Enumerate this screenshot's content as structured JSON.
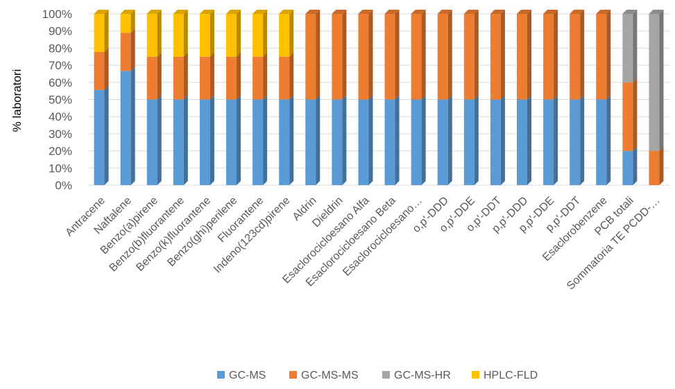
{
  "chart_data": {
    "type": "bar",
    "stacked": true,
    "percent_stacked": true,
    "three_d": true,
    "ylabel": "% laboratori",
    "ylim": [
      0,
      100
    ],
    "y_ticks": [
      "0%",
      "10%",
      "20%",
      "30%",
      "40%",
      "50%",
      "60%",
      "70%",
      "80%",
      "90%",
      "100%"
    ],
    "grid": true,
    "legend_position": "bottom",
    "categories": [
      "Antracene",
      "Naftalene",
      "Benzo(a)pirene",
      "Benzo(b)fluorantene",
      "Benzo(k)fluorantene",
      "Benzo(ghi)perilene",
      "Fluorantene",
      "Indeno(123cd)pirene",
      "Aldrin",
      "Dieldrin",
      "Esaclorocicloesano Alfa",
      "Esaclorocicloesano Beta",
      "Esaclorocicloesano…",
      "o,p'-DDD",
      "o,p'-DDE",
      "o,p'-DDT",
      "p,p'-DDD",
      "p,p'-DDE",
      "p,p'-DDT",
      "Esaclorobenzene",
      "PCB totali",
      "Sommatoria TE PCDD-…"
    ],
    "series": [
      {
        "name": "GC-MS",
        "color": "#5B9BD5",
        "values": [
          55.6,
          66.7,
          50,
          50,
          50,
          50,
          50,
          50,
          50,
          50,
          50,
          50,
          50,
          50,
          50,
          50,
          50,
          50,
          50,
          50,
          20,
          0
        ]
      },
      {
        "name": "GC-MS-MS",
        "color": "#ED7D31",
        "values": [
          22.2,
          22.2,
          25,
          25,
          25,
          25,
          25,
          25,
          50,
          50,
          50,
          50,
          50,
          50,
          50,
          50,
          50,
          50,
          50,
          50,
          40,
          20
        ]
      },
      {
        "name": "GC-MS-HR",
        "color": "#A5A5A5",
        "values": [
          0,
          0,
          0,
          0,
          0,
          0,
          0,
          0,
          0,
          0,
          0,
          0,
          0,
          0,
          0,
          0,
          0,
          0,
          0,
          0,
          40,
          80
        ]
      },
      {
        "name": "HPLC-FLD",
        "color": "#FFC000",
        "values": [
          22.2,
          11.1,
          25,
          25,
          25,
          25,
          25,
          25,
          0,
          0,
          0,
          0,
          0,
          0,
          0,
          0,
          0,
          0,
          0,
          0,
          0,
          0
        ]
      }
    ]
  }
}
